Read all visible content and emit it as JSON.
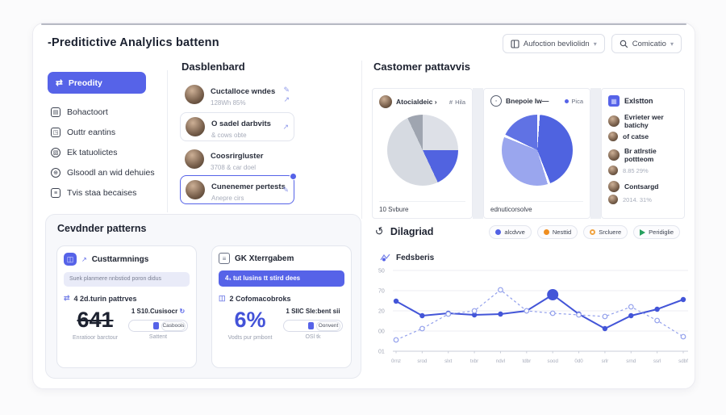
{
  "header": {
    "title": "-Preditictive Analylics battenn",
    "actions": [
      {
        "label": "Aufoction bevliolidn"
      },
      {
        "label": "Comicatio"
      }
    ]
  },
  "sidebar": {
    "active": {
      "label": "Preodity"
    },
    "items": [
      {
        "label": "Bohactoort"
      },
      {
        "label": "Outtr eantins"
      },
      {
        "label": "Ek tatuolictes"
      },
      {
        "label": "Glsoodl an wid dehuies"
      },
      {
        "label": "Tvis staa becaises"
      }
    ]
  },
  "dashboard": {
    "title": "Dasblenbard",
    "items": [
      {
        "title": "Cuctalloce wndes",
        "subtitle": "128Wh 85%"
      },
      {
        "title": "O sadel darbvits",
        "subtitle": "& cows obte"
      },
      {
        "title": "Coosrirgluster",
        "subtitle": "3708 & car doel"
      },
      {
        "title": "Cunenemer pertests",
        "subtitle": "Anepre cirs"
      }
    ]
  },
  "customer": {
    "title": "Castomer pattavvis",
    "card_a": {
      "name": "Atocialdeic ›",
      "badge_icon": "#",
      "badge": "Hila"
    },
    "card_b": {
      "name": "Bnepoie Iw—",
      "badge": "Pica"
    },
    "card_c": {
      "title": "Exlstton",
      "items": [
        {
          "title": "Evrieter wer batichy",
          "subtitle": "of catse"
        },
        {
          "title": "Br atlrstie pottteom",
          "subtitle": "8.85 29%"
        },
        {
          "title": "Contsargd",
          "subtitle": "2014. 31%"
        }
      ]
    }
  },
  "patterns": {
    "title": "Cevdnder patterns",
    "card1": {
      "header": "Custtarmnings",
      "pill": "Suek planmere nnbstiod poron didus",
      "row": "4 2d.turin pattrves",
      "stat": "641",
      "stat_label": "Enratioor barctour",
      "side_title": "1 S10.Cusisocr",
      "toggle": "Casboois",
      "side_label": "Sattent"
    },
    "card2": {
      "header": "GK Xterrgabem",
      "bar": "4₁ tut lusins tt stird dees",
      "row": "2 Cofomacobroks",
      "stat": "6%",
      "stat_label": "Vodts pur pmbont",
      "side_title": "1 SIlC Sle:bent sii",
      "toggle": "Oonvent",
      "side_label": "OSl tk"
    }
  },
  "diagram": {
    "title": "Dilagriad",
    "subtitle": "Fedsberis",
    "legend": [
      {
        "label": "alcdvve",
        "color": "#5261e4",
        "marker": "dot"
      },
      {
        "label": "Nesttid",
        "color": "#ef8e20",
        "marker": "dot"
      },
      {
        "label": "Srcluere",
        "color": "#f0a342",
        "marker": "ring"
      },
      {
        "label": "Peridiglie",
        "color": "#27a05f",
        "marker": "arrow"
      }
    ]
  },
  "icons": {
    "predict": "⇄",
    "behavior": "▤",
    "chart": "◳",
    "chat": "▧",
    "globe": "⊕",
    "list": "≡",
    "edit": "✎",
    "arrow": "↗",
    "refresh": "↻",
    "undo": "↺",
    "chevron": "▾",
    "bubble": "◦",
    "grid": "▦",
    "doc": "≡",
    "half": "◫"
  },
  "chart_data": [
    {
      "type": "pie",
      "name": "customer-pie-1",
      "caption": "10 Svbure",
      "slices": [
        {
          "label": "segment-1",
          "value": 25,
          "color": "#dde0e7"
        },
        {
          "label": "segment-2",
          "value": 18,
          "color": "#5163e0"
        },
        {
          "label": "segment-3",
          "value": 50,
          "color": "#d6dae1"
        },
        {
          "label": "segment-4",
          "value": 7,
          "color": "#9fa5b0"
        }
      ],
      "dividers": false
    },
    {
      "type": "pie",
      "name": "customer-pie-2",
      "caption": "ednuticorsolve",
      "slices": [
        {
          "label": "segment-1",
          "value": 44,
          "color": "#4f63e0"
        },
        {
          "label": "segment-2",
          "value": 37,
          "color": "#9aa6ee"
        },
        {
          "label": "segment-3",
          "value": 19,
          "color": "#6072e4"
        }
      ],
      "dividers": true
    },
    {
      "type": "line",
      "title": "Fedsberis",
      "x_labels": [
        "0rnz",
        "srod",
        "slxt",
        "txbr",
        "ndvl",
        "tdbr",
        "sood",
        "0d0",
        "srlr",
        "srnd",
        "ssrl",
        "sdbf"
      ],
      "y_tick_labels": [
        "50",
        "70",
        "20",
        "00",
        "01"
      ],
      "ylim": [
        0,
        100
      ],
      "grid": true,
      "legend_position": "top-right",
      "series": [
        {
          "name": "alcdvve",
          "style": "solid",
          "color": "#4355d8",
          "values": [
            62,
            44,
            47,
            45,
            46,
            50,
            70,
            46,
            28,
            44,
            52,
            64
          ],
          "highlight_point": 6
        },
        {
          "name": "Nesttid",
          "style": "dashed",
          "color": "#93a0ec",
          "values": [
            14,
            28,
            46,
            50,
            76,
            50,
            47,
            45,
            43,
            55,
            38,
            18
          ]
        }
      ]
    }
  ]
}
